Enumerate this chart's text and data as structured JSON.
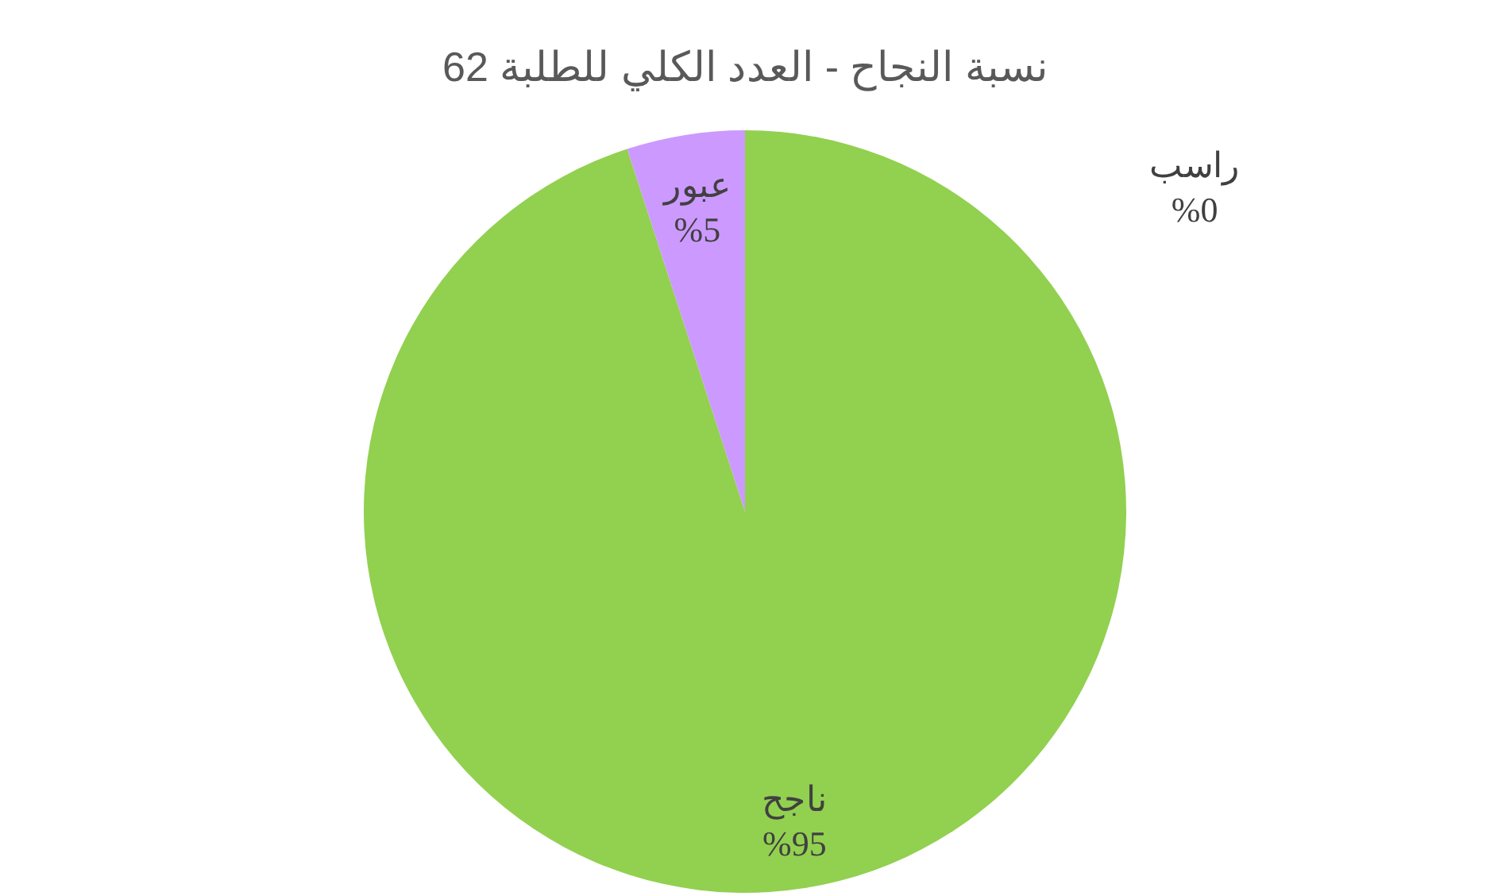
{
  "chart_data": {
    "type": "pie",
    "title": "نسبة النجاح - العدد الكلي للطلبة 62",
    "categories": [
      "راسب",
      "ناجح",
      "عبور"
    ],
    "values": [
      0,
      95,
      5
    ],
    "colors": [
      "#ff0000",
      "#92d050",
      "#cc99ff"
    ],
    "value_labels": [
      "%0",
      "%95",
      "%5"
    ],
    "legend": false
  }
}
